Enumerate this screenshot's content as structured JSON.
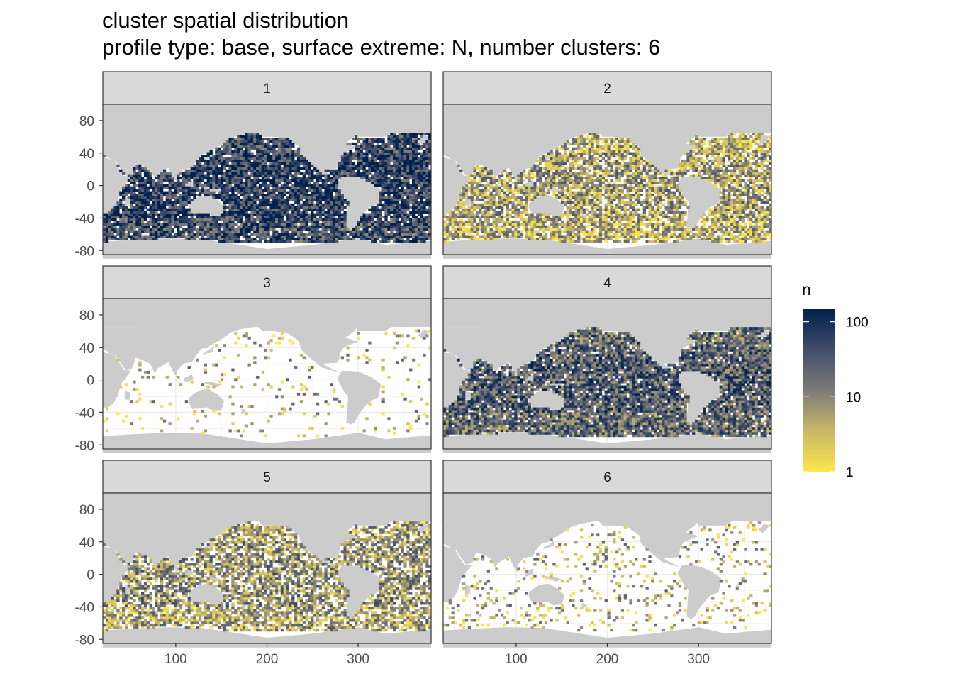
{
  "chart_data": {
    "type": "heatmap",
    "title": "cluster spatial distribution",
    "subtitle": "profile type: base, surface extreme: N, number clusters: 6",
    "xlabel": "",
    "ylabel": "",
    "xlim": [
      20,
      380
    ],
    "ylim": [
      -85,
      100
    ],
    "x_ticks": [
      100,
      200,
      300
    ],
    "y_ticks": [
      80,
      40,
      0,
      -40,
      -80
    ],
    "grid": true,
    "facets": [
      {
        "label": "1",
        "intensity": 0.75,
        "coverage": 0.92
      },
      {
        "label": "2",
        "intensity": 0.3,
        "coverage": 0.8
      },
      {
        "label": "3",
        "intensity": 0.25,
        "coverage": 0.06
      },
      {
        "label": "4",
        "intensity": 0.6,
        "coverage": 0.92
      },
      {
        "label": "5",
        "intensity": 0.35,
        "coverage": 0.7
      },
      {
        "label": "6",
        "intensity": 0.25,
        "coverage": 0.12
      }
    ],
    "legend": {
      "title": "n",
      "scale": "log10",
      "range": [
        1,
        150
      ],
      "breaks": [
        {
          "value": 100,
          "label": "100"
        },
        {
          "value": 10,
          "label": "10"
        },
        {
          "value": 1,
          "label": "1"
        }
      ],
      "colors": [
        "#fde64b",
        "#c8b866",
        "#7c7b78",
        "#414d6b",
        "#00204c"
      ],
      "placement": "right"
    },
    "land_color": "#cccccc",
    "panel_background": "#ffffff",
    "strip_background": "#d9d9d9"
  }
}
